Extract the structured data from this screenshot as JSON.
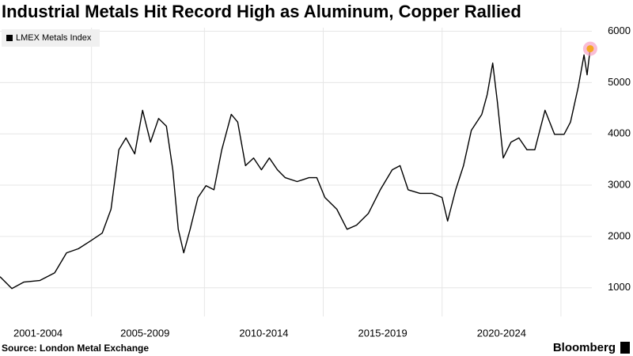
{
  "chart_data": {
    "type": "line",
    "title": "Industrial Metals Hit Record High as Aluminum, Copper Rallied",
    "source": "Source: London Metal Exchange",
    "brand": "Bloomberg",
    "legend": "top-left",
    "grid": true,
    "xlim": [
      2001.4,
      2026.3
    ],
    "xticks": [
      {
        "value": 2003,
        "label": "2001-2004"
      },
      {
        "value": 2007.5,
        "label": "2005-2009"
      },
      {
        "value": 2012.5,
        "label": "2010-2014"
      },
      {
        "value": 2017.5,
        "label": "2015-2019"
      },
      {
        "value": 2022.5,
        "label": "2020-2024"
      }
    ],
    "ylim": [
      440,
      6070
    ],
    "yticks": [
      1000,
      2000,
      3000,
      4000,
      5000,
      6000
    ],
    "x": [
      2001.4,
      2001.9,
      2002.4,
      2003.07,
      2003.7,
      2004.2,
      2004.7,
      2005.2,
      2005.7,
      2006.07,
      2006.4,
      2006.7,
      2007.07,
      2007.4,
      2007.73,
      2008.07,
      2008.4,
      2008.67,
      2008.9,
      2009.13,
      2009.4,
      2009.73,
      2010.07,
      2010.4,
      2010.73,
      2011.13,
      2011.4,
      2011.73,
      2012.07,
      2012.4,
      2012.73,
      2013.07,
      2013.4,
      2013.9,
      2014.4,
      2014.73,
      2015.07,
      2015.57,
      2016.0,
      2016.4,
      2016.9,
      2017.4,
      2017.9,
      2018.23,
      2018.57,
      2019.07,
      2019.57,
      2020.0,
      2020.23,
      2020.57,
      2020.9,
      2021.23,
      2021.67,
      2021.9,
      2022.13,
      2022.33,
      2022.57,
      2022.9,
      2023.23,
      2023.57,
      2023.9,
      2024.33,
      2024.73,
      2025.13,
      2025.4,
      2025.73,
      2025.97,
      2026.1,
      2026.23
    ],
    "series": [
      {
        "name": "LMEX Metals Index",
        "color": "#000000",
        "marker_color": "#f5a623",
        "values": [
          1216,
          985,
          1110,
          1140,
          1290,
          1680,
          1760,
          1910,
          2065,
          2530,
          3690,
          3920,
          3610,
          4460,
          3840,
          4300,
          4150,
          3300,
          2140,
          1680,
          2140,
          2760,
          2990,
          2910,
          3690,
          4380,
          4230,
          3380,
          3530,
          3300,
          3530,
          3300,
          3145,
          3070,
          3145,
          3145,
          2760,
          2530,
          2140,
          2220,
          2450,
          2910,
          3300,
          3380,
          2910,
          2840,
          2840,
          2760,
          2300,
          2910,
          3380,
          4070,
          4380,
          4770,
          5380,
          4610,
          3530,
          3840,
          3920,
          3690,
          3690,
          4460,
          3990,
          3990,
          4230,
          4920,
          5540,
          5150,
          5660
        ]
      }
    ]
  }
}
